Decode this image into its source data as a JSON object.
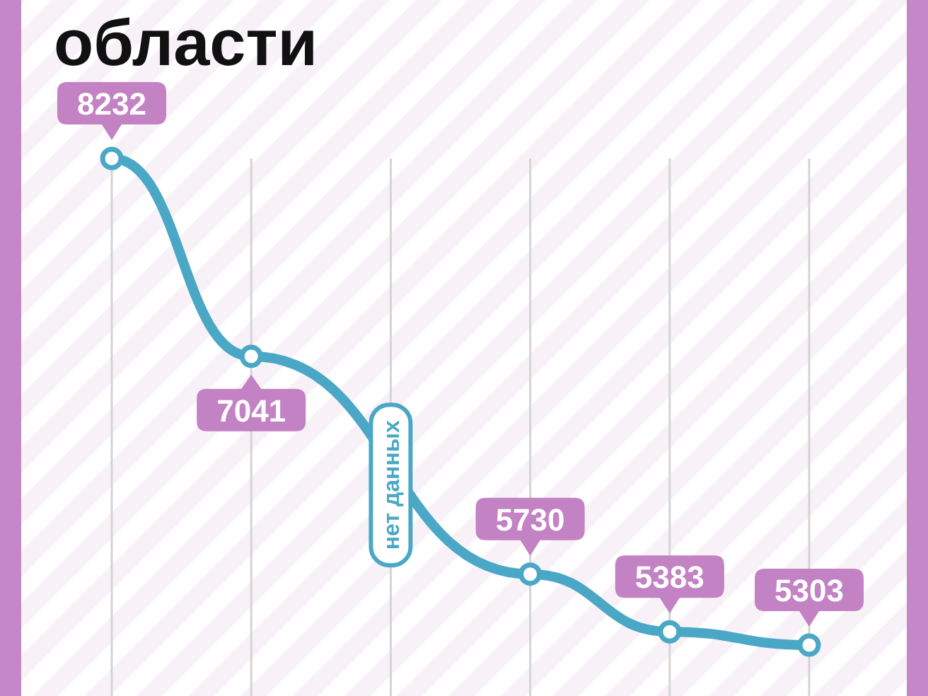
{
  "chart_data": {
    "type": "line",
    "title": "области",
    "categories": [
      null,
      null,
      null,
      null,
      null,
      null
    ],
    "values": [
      8232,
      7041,
      null,
      5730,
      5383,
      5303
    ],
    "color": "#4aa8c6",
    "data_labels": true,
    "marker": "circle",
    "line_style": "solid",
    "grid": "x",
    "annotations": [
      "нет данных"
    ]
  }
}
